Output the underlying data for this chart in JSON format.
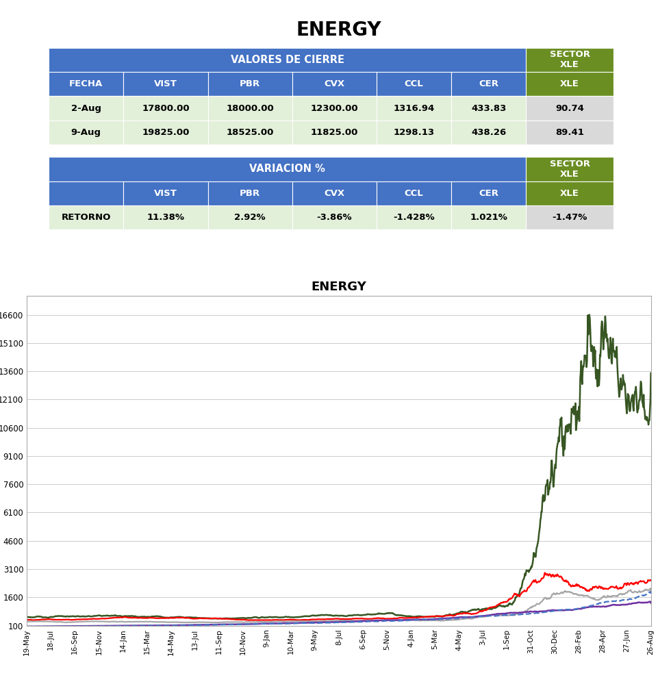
{
  "title": "ENERGY",
  "table1_header_left": "VALORES DE CIERRE",
  "table2_header_left": "VARIACION %",
  "col_headers": [
    "FECHA",
    "VIST",
    "PBR",
    "CVX",
    "CCL",
    "CER"
  ],
  "row1": [
    "2-Aug",
    "17800.00",
    "18000.00",
    "12300.00",
    "1316.94",
    "433.83"
  ],
  "row2": [
    "9-Aug",
    "19825.00",
    "18525.00",
    "11825.00",
    "1298.13",
    "438.26"
  ],
  "sector_row1": "90.74",
  "sector_row2": "89.41",
  "retorno": [
    "RETORNO",
    "11.38%",
    "2.92%",
    "-3.86%",
    "-1.428%",
    "1.021%"
  ],
  "sector_retorno": "-1.47%",
  "header_bg": "#4472C4",
  "header_fg": "#FFFFFF",
  "sector_bg": "#6B8E23",
  "data_bg_green": "#E2EFD9",
  "data_bg_light_gray": "#D9D9D9",
  "chart_title": "ENERGY",
  "yticks": [
    100,
    1600,
    3100,
    4600,
    6100,
    7600,
    9100,
    10600,
    12100,
    13600,
    15100,
    16600
  ],
  "xtick_labels": [
    "19-May",
    "18-Jul",
    "16-Sep",
    "15-Nov",
    "14-Jan",
    "15-Mar",
    "14-May",
    "13-Jul",
    "11-Sep",
    "10-Nov",
    "9-Jan",
    "10-Mar",
    "9-May",
    "8-Jul",
    "6-Sep",
    "5-Nov",
    "4-Jan",
    "5-Mar",
    "4-May",
    "3-Jul",
    "1-Sep",
    "31-Oct",
    "30-Dec",
    "28-Feb",
    "28-Apr",
    "27-Jun",
    "26-Aug"
  ],
  "line_colors": {
    "VIST": "#375623",
    "PBR": "#FF0000",
    "CVX": "#A6A6A6",
    "CCL": "#7030A0",
    "CER": "#4472C4"
  },
  "line_styles": {
    "VIST": "-",
    "PBR": "-",
    "CVX": "-",
    "CCL": "-",
    "CER": "--"
  },
  "line_widths": {
    "VIST": 1.8,
    "PBR": 1.6,
    "CVX": 1.6,
    "CCL": 1.8,
    "CER": 1.6
  }
}
